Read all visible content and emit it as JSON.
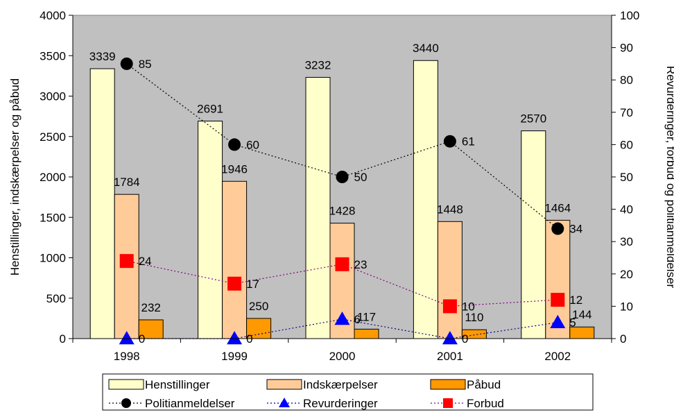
{
  "chart_data": {
    "type": "bar",
    "categories": [
      "1998",
      "1999",
      "2000",
      "2001",
      "2002"
    ],
    "ylabel": "Henstillinger, indskærpelser og påbud",
    "y2label": "Revurderinger, forbud og politianmeldelser",
    "ylim": [
      0,
      4000
    ],
    "y2lim": [
      0,
      100
    ],
    "yticks": [
      "0",
      "500",
      "1000",
      "1500",
      "2000",
      "2500",
      "3000",
      "3500",
      "4000"
    ],
    "y2ticks": [
      "0",
      "10",
      "20",
      "30",
      "40",
      "50",
      "60",
      "70",
      "80",
      "90",
      "100"
    ],
    "grid": false,
    "background": "#C0C0C0",
    "legend_position": "bottom",
    "bar_series": [
      {
        "name": "Henstillinger",
        "color": "#FFFFCC",
        "values": [
          3339,
          2691,
          3232,
          3440,
          2570
        ],
        "labels": [
          "3339",
          "2691",
          "3232",
          "3440",
          "2570"
        ]
      },
      {
        "name": "Indskærpelser",
        "color": "#FFCC99",
        "values": [
          1784,
          1946,
          1428,
          1448,
          1464
        ],
        "labels": [
          "1784",
          "1946",
          "1428",
          "1448",
          "1464"
        ]
      },
      {
        "name": "Påbud",
        "color": "#FF9900",
        "values": [
          232,
          250,
          117,
          110,
          144
        ],
        "labels": [
          "232",
          "250",
          "117",
          "110",
          "144"
        ]
      }
    ],
    "line_series": [
      {
        "name": "Politianmeldelser",
        "color": "#000000",
        "line_color": "#000000",
        "marker": "circle",
        "axis": "right",
        "values": [
          85,
          60,
          50,
          61,
          34
        ],
        "labels": [
          "85",
          "60",
          "50",
          "61",
          "34"
        ]
      },
      {
        "name": "Revurderinger",
        "color": "#0000FF",
        "line_color": "#000080",
        "marker": "triangle",
        "axis": "right",
        "values": [
          0,
          0,
          6,
          0,
          5
        ],
        "labels": [
          "0",
          "0",
          "6",
          "0",
          "5"
        ]
      },
      {
        "name": "Forbud",
        "color": "#FF0000",
        "line_color": "#800080",
        "marker": "square",
        "axis": "right",
        "values": [
          24,
          17,
          23,
          10,
          12
        ],
        "labels": [
          "24",
          "17",
          "23",
          "10",
          "12"
        ]
      }
    ]
  }
}
